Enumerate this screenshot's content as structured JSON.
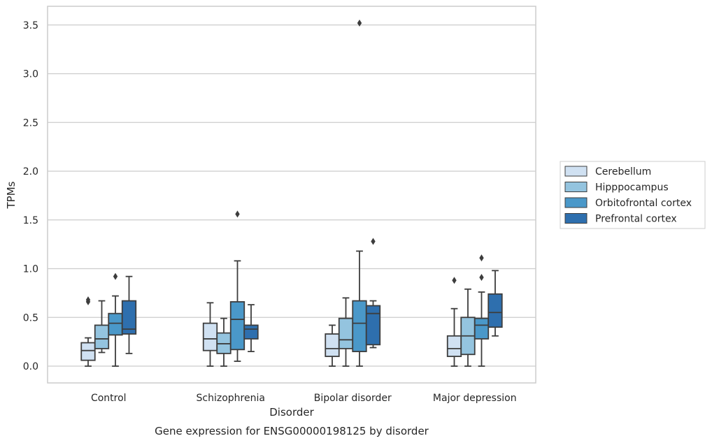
{
  "chart_data": {
    "type": "box",
    "title": "",
    "caption": "Gene expression for ENSG00000198125 by disorder",
    "xlabel": "Disorder",
    "ylabel": "TPMs",
    "ylim": [
      -0.17,
      3.7
    ],
    "yticks": [
      "0.0",
      "0.5",
      "1.0",
      "1.5",
      "2.0",
      "2.5",
      "3.0",
      "3.5"
    ],
    "ytick_values": [
      0.0,
      0.5,
      1.0,
      1.5,
      2.0,
      2.5,
      3.0,
      3.5
    ],
    "grid": "horizontal",
    "legend_position": "right",
    "categories": [
      "Control",
      "Schizophrenia",
      "Bipolar disorder",
      "Major depression"
    ],
    "series": [
      {
        "name": "Cerebellum",
        "color": "#d0e1f2",
        "boxes": [
          {
            "whislo": 0.0,
            "q1": 0.06,
            "med": 0.16,
            "q3": 0.24,
            "whishi": 0.29,
            "fliers": [
              0.66,
              0.68
            ]
          },
          {
            "whislo": 0.0,
            "q1": 0.16,
            "med": 0.28,
            "q3": 0.44,
            "whishi": 0.65,
            "fliers": []
          },
          {
            "whislo": 0.0,
            "q1": 0.1,
            "med": 0.18,
            "q3": 0.33,
            "whishi": 0.42,
            "fliers": []
          },
          {
            "whislo": 0.0,
            "q1": 0.1,
            "med": 0.18,
            "q3": 0.31,
            "whishi": 0.59,
            "fliers": [
              0.88
            ]
          }
        ]
      },
      {
        "name": "Hipppocampus",
        "color": "#94c4df",
        "boxes": [
          {
            "whislo": 0.14,
            "q1": 0.18,
            "med": 0.28,
            "q3": 0.42,
            "whishi": 0.67,
            "fliers": []
          },
          {
            "whislo": 0.0,
            "q1": 0.13,
            "med": 0.23,
            "q3": 0.34,
            "whishi": 0.49,
            "fliers": []
          },
          {
            "whislo": 0.0,
            "q1": 0.18,
            "med": 0.27,
            "q3": 0.49,
            "whishi": 0.7,
            "fliers": []
          },
          {
            "whislo": 0.0,
            "q1": 0.12,
            "med": 0.31,
            "q3": 0.5,
            "whishi": 0.79,
            "fliers": []
          }
        ]
      },
      {
        "name": "Orbitofrontal cortex",
        "color": "#4a98c9",
        "boxes": [
          {
            "whislo": 0.0,
            "q1": 0.32,
            "med": 0.44,
            "q3": 0.54,
            "whishi": 0.72,
            "fliers": [
              0.92
            ]
          },
          {
            "whislo": 0.05,
            "q1": 0.17,
            "med": 0.48,
            "q3": 0.66,
            "whishi": 1.08,
            "fliers": [
              1.56
            ]
          },
          {
            "whislo": 0.0,
            "q1": 0.15,
            "med": 0.44,
            "q3": 0.67,
            "whishi": 1.18,
            "fliers": [
              3.52
            ]
          },
          {
            "whislo": 0.0,
            "q1": 0.28,
            "med": 0.42,
            "q3": 0.49,
            "whishi": 0.76,
            "fliers": [
              0.91,
              1.11
            ]
          }
        ]
      },
      {
        "name": "Prefrontal cortex",
        "color": "#2e6fae",
        "boxes": [
          {
            "whislo": 0.13,
            "q1": 0.33,
            "med": 0.38,
            "q3": 0.67,
            "whishi": 0.92,
            "fliers": []
          },
          {
            "whislo": 0.15,
            "q1": 0.28,
            "med": 0.38,
            "q3": 0.42,
            "whishi": 0.63,
            "fliers": []
          },
          {
            "whislo": 0.19,
            "q1": 0.22,
            "med": 0.54,
            "q3": 0.62,
            "whishi": 0.67,
            "fliers": [
              1.28
            ]
          },
          {
            "whislo": 0.31,
            "q1": 0.4,
            "med": 0.55,
            "q3": 0.74,
            "whishi": 0.98,
            "fliers": []
          }
        ]
      }
    ]
  }
}
